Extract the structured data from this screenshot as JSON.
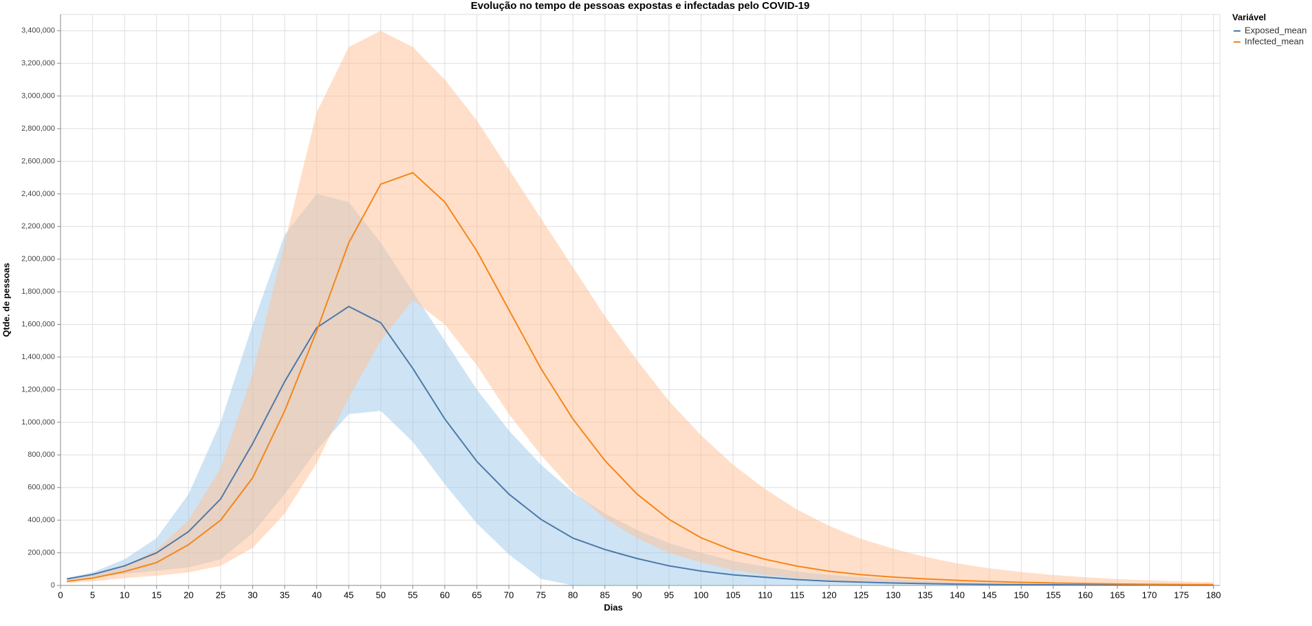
{
  "chart_data": {
    "type": "line",
    "title": "Evolução no tempo de pessoas expostas e infectadas pelo COVID-19",
    "x_label": "Dias",
    "y_label": "Qtde. de pessoas",
    "legend_title": "Variável",
    "legend_position": "right",
    "grid": true,
    "x": [
      1,
      5,
      10,
      15,
      20,
      25,
      30,
      35,
      40,
      45,
      50,
      55,
      60,
      65,
      70,
      75,
      80,
      85,
      90,
      95,
      100,
      105,
      110,
      115,
      120,
      125,
      130,
      135,
      140,
      145,
      150,
      155,
      160,
      165,
      170,
      175,
      180
    ],
    "series": [
      {
        "name": "Exposed_mean",
        "color": "#4c78a8",
        "values": [
          40000,
          67000,
          120000,
          200000,
          330000,
          530000,
          870000,
          1250000,
          1580000,
          1710000,
          1610000,
          1330000,
          1020000,
          760000,
          560000,
          405000,
          290000,
          220000,
          165000,
          120000,
          88000,
          65000,
          50000,
          36000,
          26000,
          20000,
          15000,
          11000,
          8000,
          6000,
          5000,
          4000,
          3000,
          2000,
          2000,
          1000,
          1000
        ]
      },
      {
        "name": "Infected_mean",
        "color": "#f58518",
        "values": [
          25000,
          45000,
          85000,
          140000,
          250000,
          400000,
          660000,
          1070000,
          1560000,
          2100000,
          2460000,
          2530000,
          2350000,
          2050000,
          1690000,
          1330000,
          1020000,
          765000,
          560000,
          405000,
          292000,
          215000,
          160000,
          118000,
          87000,
          66000,
          51000,
          40000,
          31000,
          24000,
          19000,
          15000,
          12000,
          9000,
          7000,
          6000,
          5000
        ]
      }
    ],
    "bands": [
      {
        "color": "#9ecae9",
        "lower": [
          30000,
          50000,
          70000,
          90000,
          110000,
          160000,
          320000,
          560000,
          830000,
          1050000,
          1070000,
          880000,
          620000,
          380000,
          190000,
          40000,
          0,
          0,
          0,
          0,
          0,
          0,
          0,
          0,
          0,
          0,
          0,
          0,
          0,
          0,
          0,
          0,
          0,
          0,
          0,
          0,
          0
        ],
        "upper": [
          45000,
          80000,
          160000,
          290000,
          560000,
          1000000,
          1600000,
          2150000,
          2400000,
          2350000,
          2100000,
          1800000,
          1500000,
          1200000,
          950000,
          740000,
          570000,
          440000,
          340000,
          260000,
          200000,
          150000,
          115000,
          85000,
          65000,
          50000,
          38000,
          29000,
          22000,
          17000,
          13000,
          10000,
          8000,
          6000,
          5000,
          4000,
          3000
        ]
      },
      {
        "color": "#ffbf94",
        "lower": [
          15000,
          25000,
          45000,
          60000,
          80000,
          120000,
          230000,
          440000,
          750000,
          1150000,
          1500000,
          1750000,
          1600000,
          1350000,
          1050000,
          800000,
          580000,
          410000,
          290000,
          200000,
          140000,
          95000,
          65000,
          45000,
          30000,
          20000,
          14000,
          10000,
          7000,
          5000,
          4000,
          3000,
          2000,
          2000,
          1000,
          1000,
          1000
        ],
        "upper": [
          35000,
          60000,
          120000,
          220000,
          400000,
          720000,
          1300000,
          2100000,
          2900000,
          3300000,
          3400000,
          3300000,
          3100000,
          2850000,
          2550000,
          2250000,
          1950000,
          1650000,
          1380000,
          1130000,
          920000,
          740000,
          590000,
          465000,
          365000,
          285000,
          225000,
          175000,
          135000,
          105000,
          82000,
          64000,
          50000,
          39000,
          31000,
          24000,
          19000
        ]
      }
    ],
    "xlim": [
      0,
      181
    ],
    "xticks": [
      0,
      5,
      10,
      15,
      20,
      25,
      30,
      35,
      40,
      45,
      50,
      55,
      60,
      65,
      70,
      75,
      80,
      85,
      90,
      95,
      100,
      105,
      110,
      115,
      120,
      125,
      130,
      135,
      140,
      145,
      150,
      155,
      160,
      165,
      170,
      175,
      180
    ],
    "ylim": [
      0,
      3500000
    ],
    "yticks": [
      0,
      {
        "value": 200000,
        "label": "200,000"
      },
      {
        "value": 400000,
        "label": "400,000"
      },
      {
        "value": 600000,
        "label": "600,000"
      },
      {
        "value": 800000,
        "label": "800,000"
      },
      {
        "value": 1000000,
        "label": "1,000,000"
      },
      {
        "value": 1200000,
        "label": "1,200,000"
      },
      {
        "value": 1400000,
        "label": "1,400,000"
      },
      {
        "value": 1600000,
        "label": "1,600,000"
      },
      {
        "value": 1800000,
        "label": "1,800,000"
      },
      {
        "value": 2000000,
        "label": "2,000,000"
      },
      {
        "value": 2200000,
        "label": "2,200,000"
      },
      {
        "value": 2400000,
        "label": "2,400,000"
      },
      {
        "value": 2600000,
        "label": "2,600,000"
      },
      {
        "value": 2800000,
        "label": "2,800,000"
      },
      {
        "value": 3000000,
        "label": "3,000,000"
      },
      {
        "value": 3200000,
        "label": "3,200,000"
      },
      {
        "value": 3400000,
        "label": "3,400,000"
      }
    ]
  }
}
